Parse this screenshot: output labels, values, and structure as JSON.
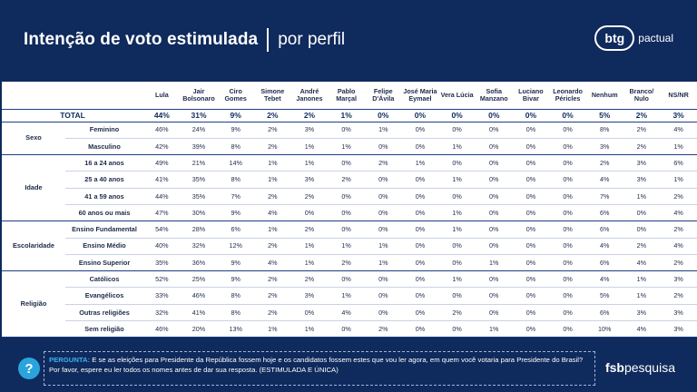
{
  "header": {
    "title": "Intenção de voto estimulada",
    "subtitle": "por perfil",
    "brand_badge": "btg",
    "brand_word": "pactual"
  },
  "table": {
    "columns": [
      "Lula",
      "Jair Bolsonaro",
      "Ciro Gomes",
      "Simone Tebet",
      "André Janones",
      "Pablo Marçal",
      "Felipe D'Ávila",
      "José Maria Eymael",
      "Vera Lúcia",
      "Sofia Manzano",
      "Luciano Bivar",
      "Leonardo Péricles",
      "Nenhum",
      "Branco/ Nulo",
      "NS/NR"
    ],
    "total": {
      "label": "TOTAL",
      "values": [
        "44%",
        "31%",
        "9%",
        "2%",
        "2%",
        "1%",
        "0%",
        "0%",
        "0%",
        "0%",
        "0%",
        "0%",
        "5%",
        "2%",
        "3%"
      ]
    },
    "groups": [
      {
        "name": "Sexo",
        "rows": [
          {
            "label": "Feminino",
            "values": [
              "46%",
              "24%",
              "9%",
              "2%",
              "3%",
              "0%",
              "1%",
              "0%",
              "0%",
              "0%",
              "0%",
              "0%",
              "8%",
              "2%",
              "4%"
            ]
          },
          {
            "label": "Masculino",
            "values": [
              "42%",
              "39%",
              "8%",
              "2%",
              "1%",
              "1%",
              "0%",
              "0%",
              "1%",
              "0%",
              "0%",
              "0%",
              "3%",
              "2%",
              "1%"
            ]
          }
        ]
      },
      {
        "name": "Idade",
        "rows": [
          {
            "label": "16 a 24 anos",
            "values": [
              "49%",
              "21%",
              "14%",
              "1%",
              "1%",
              "0%",
              "2%",
              "1%",
              "0%",
              "0%",
              "0%",
              "0%",
              "2%",
              "3%",
              "6%"
            ]
          },
          {
            "label": "25 a 40 anos",
            "values": [
              "41%",
              "35%",
              "8%",
              "1%",
              "3%",
              "2%",
              "0%",
              "0%",
              "1%",
              "0%",
              "0%",
              "0%",
              "4%",
              "3%",
              "1%"
            ]
          },
          {
            "label": "41 a 59 anos",
            "values": [
              "44%",
              "35%",
              "7%",
              "2%",
              "2%",
              "0%",
              "0%",
              "0%",
              "0%",
              "0%",
              "0%",
              "0%",
              "7%",
              "1%",
              "2%"
            ]
          },
          {
            "label": "60 anos ou mais",
            "values": [
              "47%",
              "30%",
              "9%",
              "4%",
              "0%",
              "0%",
              "0%",
              "0%",
              "1%",
              "0%",
              "0%",
              "0%",
              "6%",
              "0%",
              "4%"
            ]
          }
        ]
      },
      {
        "name": "Escolaridade",
        "rows": [
          {
            "label": "Ensino Fundamental",
            "values": [
              "54%",
              "28%",
              "6%",
              "1%",
              "2%",
              "0%",
              "0%",
              "0%",
              "1%",
              "0%",
              "0%",
              "0%",
              "6%",
              "0%",
              "2%"
            ]
          },
          {
            "label": "Ensino Médio",
            "values": [
              "40%",
              "32%",
              "12%",
              "2%",
              "1%",
              "1%",
              "1%",
              "0%",
              "0%",
              "0%",
              "0%",
              "0%",
              "4%",
              "2%",
              "4%"
            ]
          },
          {
            "label": "Ensino Superior",
            "values": [
              "35%",
              "36%",
              "9%",
              "4%",
              "1%",
              "2%",
              "1%",
              "0%",
              "0%",
              "1%",
              "0%",
              "0%",
              "6%",
              "4%",
              "2%"
            ]
          }
        ]
      },
      {
        "name": "Religião",
        "rows": [
          {
            "label": "Católicos",
            "values": [
              "52%",
              "25%",
              "9%",
              "2%",
              "2%",
              "0%",
              "0%",
              "0%",
              "1%",
              "0%",
              "0%",
              "0%",
              "4%",
              "1%",
              "3%"
            ]
          },
          {
            "label": "Evangélicos",
            "values": [
              "33%",
              "46%",
              "8%",
              "2%",
              "3%",
              "1%",
              "0%",
              "0%",
              "0%",
              "0%",
              "0%",
              "0%",
              "5%",
              "1%",
              "2%"
            ]
          },
          {
            "label": "Outras religiões",
            "values": [
              "32%",
              "41%",
              "8%",
              "2%",
              "0%",
              "4%",
              "0%",
              "0%",
              "2%",
              "0%",
              "0%",
              "0%",
              "6%",
              "3%",
              "3%"
            ]
          },
          {
            "label": "Sem religião",
            "values": [
              "46%",
              "20%",
              "13%",
              "1%",
              "1%",
              "0%",
              "2%",
              "0%",
              "0%",
              "1%",
              "0%",
              "0%",
              "10%",
              "4%",
              "3%"
            ]
          }
        ]
      }
    ]
  },
  "footer": {
    "question_label": "PERGUNTA:",
    "question_text": "E se as eleições para Presidente da República fossem hoje e os candidatos fossem estes que vou ler agora, em quem você votaria para Presidente do Brasil? Por favor, espere eu ler todos os nomes antes de dar sua resposta. (ESTIMULADA E ÚNICA)",
    "help_glyph": "?",
    "brand_bold": "fsb",
    "brand_rest": "pesquisa"
  },
  "colors": {
    "background": "#0f2a5c",
    "accent": "#3fb3f0",
    "table_text": "#1d2a4a"
  }
}
